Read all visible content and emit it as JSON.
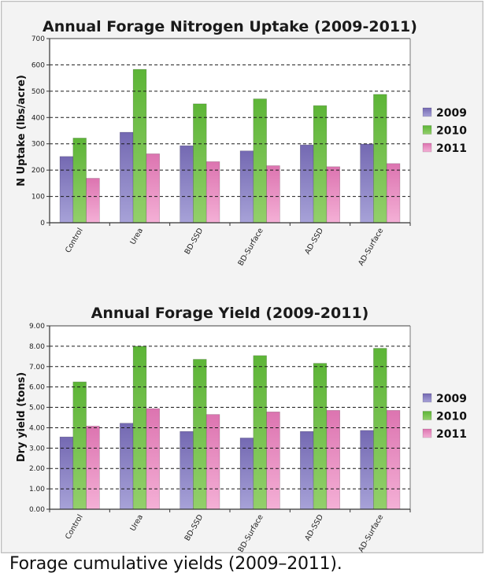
{
  "caption": "Forage cumulative yields (2009–2011).",
  "colors": {
    "2009": [
      "#7469b2",
      "#a7a2d8"
    ],
    "2010": [
      "#5db537",
      "#93cf6b"
    ],
    "2011": [
      "#dc74b0",
      "#f4b0d6"
    ]
  },
  "chart_data": [
    {
      "type": "bar",
      "title": "Annual Forage Nitrogen Uptake (2009-2011)",
      "xlabel": "",
      "ylabel": "N Uptake (lbs/acre)",
      "ylim": [
        0,
        700
      ],
      "yticks": [
        0,
        100,
        200,
        300,
        400,
        500,
        600,
        700
      ],
      "ytick_labels": [
        "0",
        "100",
        "200",
        "300",
        "400",
        "500",
        "600",
        "700"
      ],
      "grid": "horizontal dashed",
      "legend_position": "right",
      "categories": [
        "Control",
        "Urea",
        "BD-SSD",
        "BD-Surface",
        "AD-SSD",
        "AD-Surface"
      ],
      "series": [
        {
          "name": "2009",
          "values": [
            252,
            344,
            293,
            273,
            296,
            299
          ]
        },
        {
          "name": "2010",
          "values": [
            322,
            583,
            452,
            471,
            445,
            488
          ]
        },
        {
          "name": "2011",
          "values": [
            169,
            262,
            232,
            217,
            213,
            225
          ]
        }
      ]
    },
    {
      "type": "bar",
      "title": "Annual Forage Yield (2009-2011)",
      "xlabel": "",
      "ylabel": "Dry yield (tons)",
      "ylim": [
        0,
        9
      ],
      "yticks": [
        0,
        1,
        2,
        3,
        4,
        5,
        6,
        7,
        8,
        9
      ],
      "ytick_labels": [
        "0.00",
        "1.00",
        "2.00",
        "3.00",
        "4.00",
        "5.00",
        "6.00",
        "7.00",
        "8.00",
        "9.00"
      ],
      "grid": "horizontal dashed",
      "legend_position": "right",
      "categories": [
        "Control",
        "Urea",
        "BD-SSD",
        "BD-Surface",
        "AD-SSD",
        "AD-Surface"
      ],
      "series": [
        {
          "name": "2009",
          "values": [
            3.55,
            4.22,
            3.82,
            3.5,
            3.82,
            3.87
          ]
        },
        {
          "name": "2010",
          "values": [
            6.25,
            8.0,
            7.36,
            7.54,
            7.16,
            7.9
          ]
        },
        {
          "name": "2011",
          "values": [
            4.08,
            4.94,
            4.65,
            4.78,
            4.85,
            4.85
          ]
        }
      ]
    }
  ]
}
